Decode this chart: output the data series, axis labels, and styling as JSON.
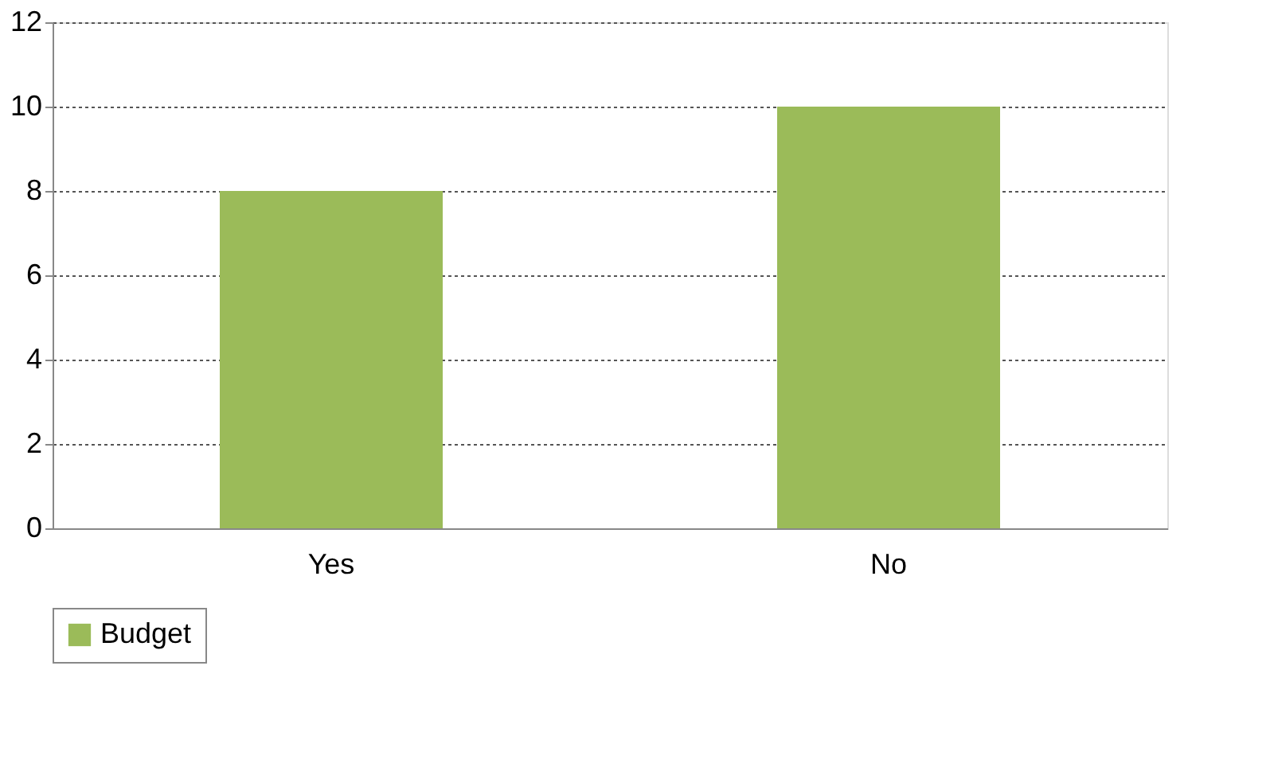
{
  "chart_data": {
    "type": "bar",
    "categories": [
      "Yes",
      "No"
    ],
    "series": [
      {
        "name": "Budget",
        "color": "#9bbb59",
        "values": [
          8,
          10
        ]
      }
    ],
    "ylim": [
      0,
      12
    ],
    "yticks": [
      0,
      2,
      4,
      6,
      8,
      10,
      12
    ],
    "grid": "y",
    "legend": "bottom"
  }
}
